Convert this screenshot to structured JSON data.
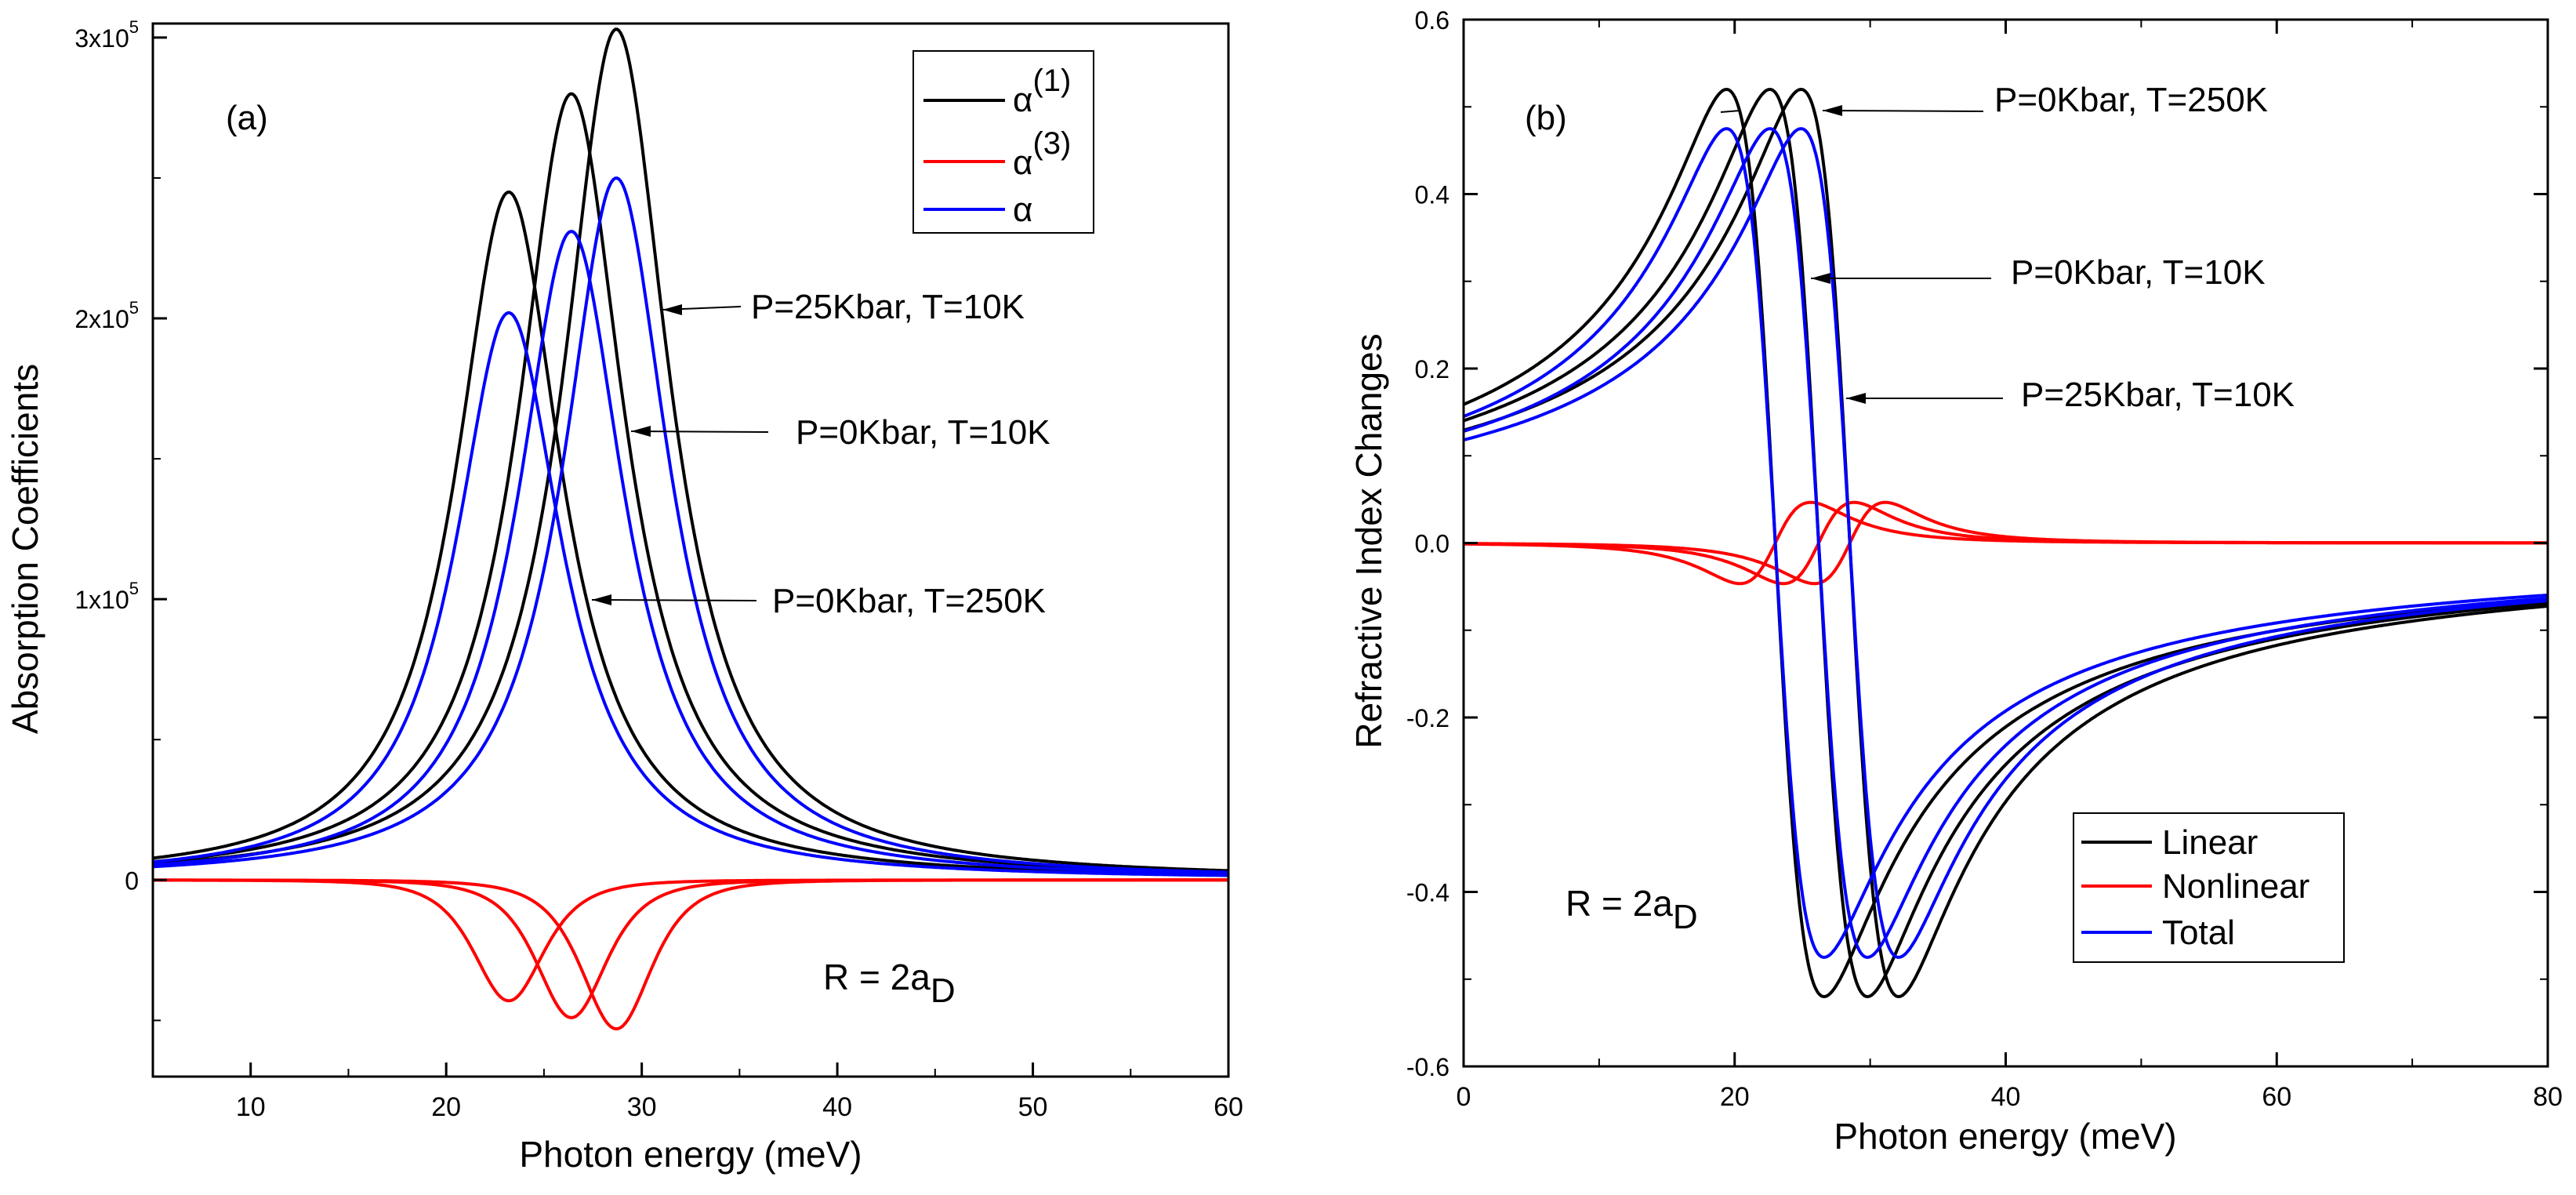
{
  "chart_data": [
    {
      "type": "line",
      "panel_label": "(a)",
      "xlabel": "Photon energy (meV)",
      "ylabel": "Absorption Coefficients",
      "xlim": [
        5,
        60
      ],
      "ylim": [
        -70000,
        305000
      ],
      "x_ticks": [
        10,
        20,
        30,
        40,
        50,
        60
      ],
      "x_tick_labels": [
        "10",
        "20",
        "30",
        "40",
        "50",
        "60"
      ],
      "y_ticks": [
        0,
        100000,
        200000,
        300000
      ],
      "y_tick_labels": [
        {
          "base": "0",
          "exp": ""
        },
        {
          "base": "1x10",
          "exp": "5"
        },
        {
          "base": "2x10",
          "exp": "5"
        },
        {
          "base": "3x10",
          "exp": "5"
        }
      ],
      "legend": {
        "position": "top-right",
        "entries": [
          {
            "base": "α",
            "sup": "(1)",
            "color": "#000000"
          },
          {
            "base": "α",
            "sup": "(3)",
            "color": "#ff0000"
          },
          {
            "base": "α",
            "sup": "",
            "color": "#0000ff"
          }
        ]
      },
      "annotations": [
        {
          "text": "P=25Kbar, T=10K",
          "x": 28.7,
          "y": 215000
        },
        {
          "text": "P=0Kbar, T=10K",
          "x": 26.4,
          "y": 170000
        },
        {
          "text": "P=0Kbar, T=250K",
          "x": 23.2,
          "y": 105000
        }
      ],
      "note": {
        "base": "R = 2a",
        "sub": "D"
      },
      "series": [
        {
          "name": "α(1), P=0Kbar, T=250K",
          "color": "#000000",
          "center": 23.2,
          "peak": 245000
        },
        {
          "name": "α(1), P=0Kbar, T=10K",
          "color": "#000000",
          "center": 26.4,
          "peak": 280000
        },
        {
          "name": "α(1), P=25Kbar, T=10K",
          "color": "#000000",
          "center": 28.7,
          "peak": 303000
        },
        {
          "name": "α(3), P=0Kbar, T=250K",
          "color": "#ff0000",
          "center": 23.2,
          "peak": -43000
        },
        {
          "name": "α(3), P=0Kbar, T=10K",
          "color": "#ff0000",
          "center": 26.4,
          "peak": -49000
        },
        {
          "name": "α(3), P=25Kbar, T=10K",
          "color": "#ff0000",
          "center": 28.7,
          "peak": -53000
        },
        {
          "name": "α, P=0Kbar, T=250K",
          "color": "#0000ff",
          "center": 23.2,
          "peak": 202000
        },
        {
          "name": "α, P=0Kbar, T=10K",
          "color": "#0000ff",
          "center": 26.4,
          "peak": 231000
        },
        {
          "name": "α, P=25Kbar, T=10K",
          "color": "#0000ff",
          "center": 28.7,
          "peak": 250000
        }
      ]
    },
    {
      "type": "line",
      "panel_label": "(b)",
      "xlabel": "Photon energy (meV)",
      "ylabel": "Refractive Index Changes",
      "xlim": [
        0,
        80
      ],
      "ylim": [
        -0.6,
        0.6
      ],
      "x_ticks": [
        0,
        20,
        40,
        60,
        80
      ],
      "x_tick_labels": [
        "0",
        "20",
        "40",
        "60",
        "80"
      ],
      "y_ticks": [
        -0.6,
        -0.4,
        -0.2,
        0.0,
        0.2,
        0.4,
        0.6
      ],
      "y_tick_labels": [
        "-0.6",
        "-0.4",
        "-0.2",
        "0.0",
        "0.2",
        "0.4",
        "0.6"
      ],
      "legend": {
        "position": "bottom-right",
        "entries": [
          {
            "text": "Linear",
            "color": "#000000"
          },
          {
            "text": "Nonlinear",
            "color": "#ff0000"
          },
          {
            "text": "Total",
            "color": "#0000ff"
          }
        ]
      },
      "annotations": [
        {
          "text": "P=0Kbar, T=250K",
          "x": 25.5,
          "y": 0.49
        },
        {
          "text": "P=0Kbar, T=10K",
          "x": 27.5,
          "y": 0.3
        },
        {
          "text": "P=25Kbar, T=10K",
          "x": 29.5,
          "y": 0.16
        }
      ],
      "note": {
        "base": "R = 2a",
        "sub": "D"
      },
      "series": [
        {
          "name": "Linear, P=0Kbar, T=250K",
          "color": "#000000",
          "center": 23.0,
          "amplitude": 0.52
        },
        {
          "name": "Linear, P=0Kbar, T=10K",
          "color": "#000000",
          "center": 26.2,
          "amplitude": 0.52
        },
        {
          "name": "Linear, P=25Kbar, T=10K",
          "color": "#000000",
          "center": 28.5,
          "amplitude": 0.52
        },
        {
          "name": "Nonlinear, P=0Kbar, T=250K",
          "color": "#ff0000",
          "center": 23.0,
          "amplitude": -0.058
        },
        {
          "name": "Nonlinear, P=0Kbar, T=10K",
          "color": "#ff0000",
          "center": 26.2,
          "amplitude": -0.058
        },
        {
          "name": "Nonlinear, P=25Kbar, T=10K",
          "color": "#ff0000",
          "center": 28.5,
          "amplitude": -0.058
        },
        {
          "name": "Total, P=0Kbar, T=250K",
          "color": "#0000ff",
          "center": 23.0,
          "amplitude": 0.475
        },
        {
          "name": "Total, P=0Kbar, T=10K",
          "color": "#0000ff",
          "center": 26.2,
          "amplitude": 0.475
        },
        {
          "name": "Total, P=25Kbar, T=10K",
          "color": "#0000ff",
          "center": 28.5,
          "amplitude": 0.475
        }
      ]
    }
  ]
}
